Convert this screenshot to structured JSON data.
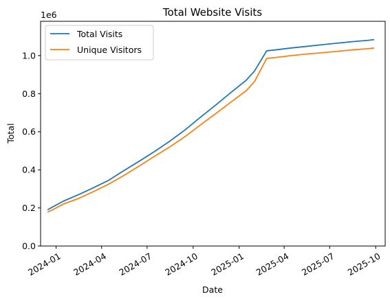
{
  "chart_data": {
    "type": "line",
    "title": "Total Website Visits",
    "xlabel": "Date",
    "ylabel": "Total",
    "y_scale_label": "1e6",
    "xlim": [
      "2023-12-01",
      "2025-10-20"
    ],
    "ylim": [
      0,
      1180000
    ],
    "x_ticks": [
      {
        "value": "2024-01-01",
        "label": "2024-01"
      },
      {
        "value": "2024-04-01",
        "label": "2024-04"
      },
      {
        "value": "2024-07-01",
        "label": "2024-07"
      },
      {
        "value": "2024-10-01",
        "label": "2024-10"
      },
      {
        "value": "2025-01-01",
        "label": "2025-01"
      },
      {
        "value": "2025-04-01",
        "label": "2025-04"
      },
      {
        "value": "2025-07-01",
        "label": "2025-07"
      },
      {
        "value": "2025-10-01",
        "label": "2025-10"
      }
    ],
    "y_ticks": [
      {
        "value": 0,
        "label": "0.0"
      },
      {
        "value": 200000,
        "label": "0.2"
      },
      {
        "value": 400000,
        "label": "0.4"
      },
      {
        "value": 600000,
        "label": "0.6"
      },
      {
        "value": 800000,
        "label": "0.8"
      },
      {
        "value": 1000000,
        "label": "1.0"
      }
    ],
    "grid": false,
    "legend_position": "top-left",
    "x": [
      "2023-12-15",
      "2023-12-25",
      "2024-01-15",
      "2024-02-15",
      "2024-03-15",
      "2024-04-15",
      "2024-05-15",
      "2024-06-15",
      "2024-07-15",
      "2024-08-15",
      "2024-09-15",
      "2024-10-15",
      "2024-11-15",
      "2024-12-15",
      "2025-01-15",
      "2025-02-01",
      "2025-02-25",
      "2025-03-15",
      "2025-04-15",
      "2025-05-15",
      "2025-06-15",
      "2025-07-15",
      "2025-08-15",
      "2025-09-15",
      "2025-09-28"
    ],
    "series": [
      {
        "name": "Total Visits",
        "color": "#1f77b4",
        "values": [
          190000,
          205000,
          235000,
          270000,
          305000,
          345000,
          395000,
          445000,
          495000,
          550000,
          610000,
          675000,
          740000,
          805000,
          870000,
          920000,
          1025000,
          1030000,
          1040000,
          1048000,
          1057000,
          1065000,
          1073000,
          1080000,
          1084000
        ]
      },
      {
        "name": "Unique Visitors",
        "color": "#ff7f0e",
        "values": [
          178000,
          190000,
          220000,
          250000,
          285000,
          325000,
          370000,
          420000,
          470000,
          520000,
          575000,
          635000,
          695000,
          755000,
          815000,
          865000,
          985000,
          990000,
          1000000,
          1008000,
          1015000,
          1022000,
          1030000,
          1036000,
          1040000
        ]
      }
    ]
  }
}
